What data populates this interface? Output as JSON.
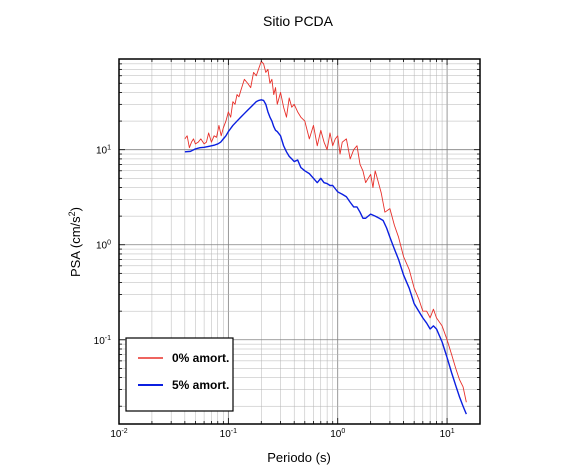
{
  "chart_data": {
    "type": "line",
    "title": "Sitio PCDA",
    "xlabel": "Periodo (s)",
    "ylabel": {
      "base": "PSA (cm/s",
      "sup": "2",
      "close": ")"
    },
    "x_scale": "log",
    "y_scale": "log",
    "xlim": [
      0.01,
      20
    ],
    "ylim": [
      0.013,
      90
    ],
    "grid": true,
    "legend_position": "bottom-left",
    "x_ticks": [
      {
        "value": 0.01,
        "base": "10",
        "exp": "-2"
      },
      {
        "value": 0.1,
        "base": "10",
        "exp": "-1"
      },
      {
        "value": 1,
        "base": "10",
        "exp": "0"
      },
      {
        "value": 10,
        "base": "10",
        "exp": "1"
      }
    ],
    "y_ticks": [
      {
        "value": 0.1,
        "base": "10",
        "exp": "-1"
      },
      {
        "value": 1,
        "base": "10",
        "exp": "0"
      },
      {
        "value": 10,
        "base": "10",
        "exp": "1"
      }
    ],
    "series": [
      {
        "name": "0% amort.",
        "color": "#e8302a",
        "x": [
          0.04,
          0.042,
          0.044,
          0.046,
          0.048,
          0.05,
          0.053,
          0.056,
          0.06,
          0.063,
          0.066,
          0.07,
          0.074,
          0.078,
          0.082,
          0.086,
          0.09,
          0.095,
          0.1,
          0.105,
          0.11,
          0.115,
          0.12,
          0.125,
          0.13,
          0.14,
          0.15,
          0.16,
          0.17,
          0.18,
          0.19,
          0.2,
          0.21,
          0.22,
          0.23,
          0.24,
          0.25,
          0.26,
          0.27,
          0.28,
          0.3,
          0.32,
          0.34,
          0.36,
          0.38,
          0.4,
          0.43,
          0.46,
          0.5,
          0.55,
          0.6,
          0.65,
          0.7,
          0.75,
          0.8,
          0.85,
          0.9,
          0.95,
          1.0,
          1.05,
          1.1,
          1.2,
          1.3,
          1.4,
          1.5,
          1.6,
          1.7,
          1.8,
          1.9,
          2.0,
          2.1,
          2.2,
          2.3,
          2.5,
          2.7,
          3.0,
          3.3,
          3.6,
          4.0,
          4.5,
          5.0,
          5.5,
          6.0,
          6.5,
          7.0,
          7.5,
          8.0,
          9.0,
          10.0,
          11.0,
          12.0,
          13.0,
          14.0,
          15.0
        ],
        "y": [
          13,
          14,
          10.5,
          12,
          13,
          11.5,
          12,
          13,
          11.5,
          12,
          15,
          12,
          14,
          13.5,
          18,
          14,
          17,
          20,
          25,
          22,
          32,
          30,
          38,
          36,
          42,
          55,
          50,
          45,
          65,
          60,
          72,
          85,
          80,
          65,
          70,
          50,
          55,
          38,
          45,
          30,
          40,
          28,
          22,
          35,
          28,
          30,
          25,
          22,
          20,
          13,
          18,
          11,
          16,
          12,
          10,
          15,
          11,
          13,
          14,
          9,
          12,
          13,
          8,
          10,
          11,
          7,
          6,
          4.5,
          5,
          5.5,
          4,
          6,
          5,
          3.5,
          2.2,
          2.4,
          1.6,
          1.2,
          0.75,
          0.55,
          0.35,
          0.27,
          0.2,
          0.2,
          0.17,
          0.21,
          0.17,
          0.14,
          0.1,
          0.07,
          0.05,
          0.038,
          0.032,
          0.022
        ]
      },
      {
        "name": "5% amort.",
        "color": "#0b1fe0",
        "x": [
          0.04,
          0.045,
          0.05,
          0.055,
          0.06,
          0.065,
          0.07,
          0.075,
          0.08,
          0.085,
          0.09,
          0.095,
          0.1,
          0.11,
          0.12,
          0.13,
          0.14,
          0.15,
          0.16,
          0.17,
          0.18,
          0.19,
          0.2,
          0.21,
          0.22,
          0.23,
          0.24,
          0.25,
          0.26,
          0.27,
          0.28,
          0.3,
          0.32,
          0.34,
          0.36,
          0.38,
          0.4,
          0.43,
          0.46,
          0.5,
          0.55,
          0.6,
          0.65,
          0.7,
          0.75,
          0.8,
          0.85,
          0.9,
          1.0,
          1.1,
          1.2,
          1.3,
          1.4,
          1.5,
          1.6,
          1.7,
          1.8,
          1.9,
          2.0,
          2.2,
          2.4,
          2.6,
          2.8,
          3.0,
          3.3,
          3.6,
          4.0,
          4.5,
          5.0,
          5.5,
          6.0,
          6.5,
          7.0,
          7.5,
          8.0,
          9.0,
          10.0,
          11.0,
          12.0,
          13.0,
          14.0,
          15.0
        ],
        "y": [
          9.5,
          9.6,
          10.2,
          10.5,
          10.6,
          10.8,
          11,
          11.2,
          11.5,
          12,
          13,
          14,
          15.5,
          18,
          20,
          22,
          24,
          26,
          28,
          30,
          32,
          33,
          33.5,
          33,
          30,
          25,
          22,
          20,
          17.5,
          16,
          15.5,
          14,
          11,
          9.5,
          8.5,
          8,
          7.5,
          7.8,
          6.5,
          6,
          5.6,
          5,
          4.5,
          5,
          4.5,
          4.4,
          4.2,
          4.2,
          3.6,
          3.4,
          3.2,
          2.8,
          2.5,
          2.5,
          2.2,
          1.9,
          1.9,
          2.0,
          2.1,
          2.0,
          1.9,
          1.8,
          1.5,
          1.2,
          0.9,
          0.7,
          0.48,
          0.35,
          0.24,
          0.2,
          0.17,
          0.15,
          0.13,
          0.14,
          0.13,
          0.095,
          0.065,
          0.045,
          0.033,
          0.025,
          0.02,
          0.0165
        ]
      }
    ]
  }
}
